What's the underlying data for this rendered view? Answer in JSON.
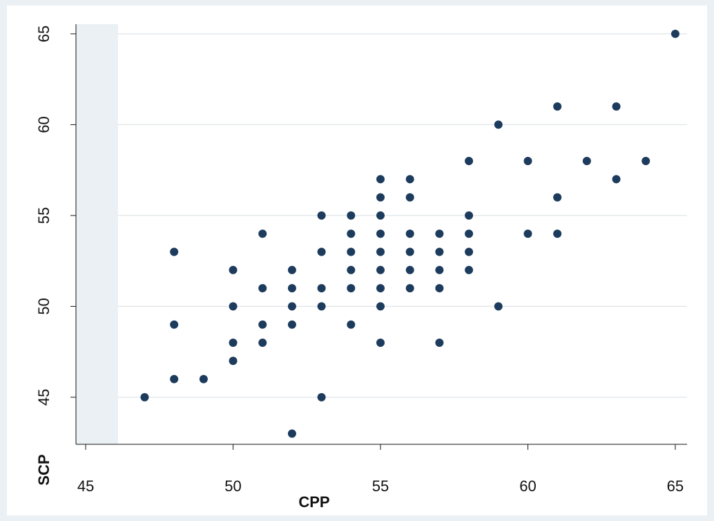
{
  "chart_data": {
    "type": "scatter",
    "x_label": "CPP",
    "y_label": "SCP",
    "x": [
      47,
      48,
      48,
      48,
      49,
      50,
      50,
      50,
      50,
      51,
      51,
      51,
      51,
      52,
      52,
      52,
      52,
      52,
      53,
      53,
      53,
      53,
      53,
      54,
      54,
      54,
      54,
      54,
      54,
      55,
      55,
      55,
      55,
      55,
      55,
      55,
      55,
      55,
      56,
      56,
      56,
      56,
      56,
      56,
      57,
      57,
      57,
      57,
      57,
      58,
      58,
      58,
      58,
      58,
      59,
      59,
      60,
      60,
      61,
      61,
      61,
      62,
      63,
      63,
      64,
      65
    ],
    "y": [
      45,
      53,
      49,
      46,
      46,
      52,
      50,
      48,
      47,
      54,
      51,
      49,
      48,
      52,
      51,
      50,
      49,
      43,
      55,
      53,
      51,
      50,
      45,
      55,
      54,
      53,
      52,
      51,
      49,
      57,
      56,
      55,
      54,
      53,
      52,
      51,
      50,
      48,
      57,
      56,
      54,
      53,
      52,
      51,
      54,
      53,
      52,
      51,
      48,
      58,
      55,
      54,
      53,
      52,
      60,
      50,
      58,
      54,
      61,
      56,
      54,
      58,
      61,
      57,
      58,
      65
    ],
    "color": "#1d3b5c",
    "xlim": [
      44.67,
      65.4
    ],
    "ylim": [
      42.41,
      65.53
    ],
    "xticks": [
      45,
      50,
      55,
      60,
      65
    ],
    "yticks": [
      45,
      50,
      55,
      60,
      65
    ],
    "grid": true
  }
}
